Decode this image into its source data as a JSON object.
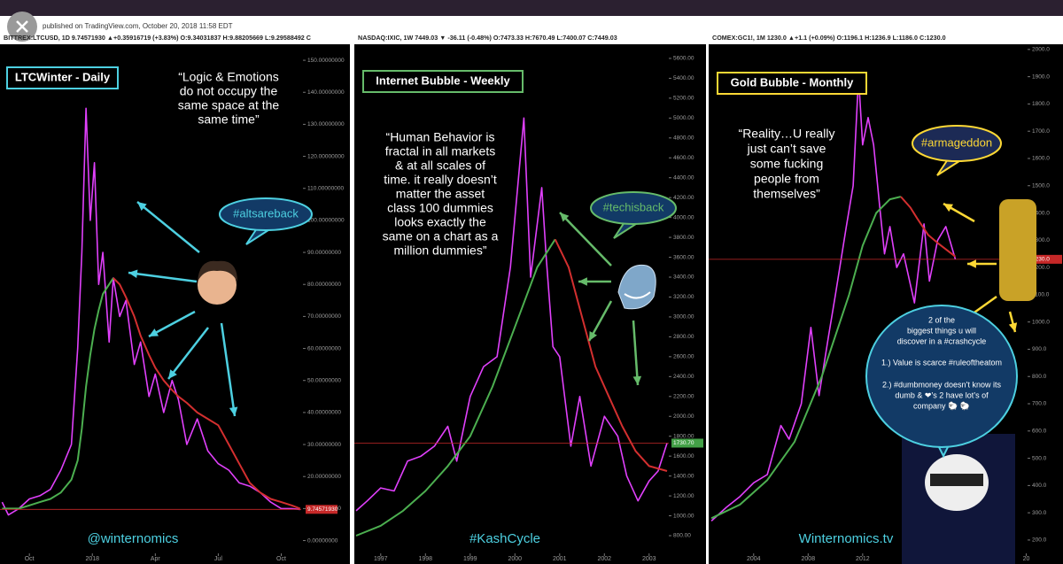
{
  "published": "published on TradingView.com, October 20, 2018 11:58 EDT",
  "chart_data": [
    {
      "type": "line",
      "title": "LTCWinter - Daily",
      "symbol_line": "BITTREX:LTCUSD, 1D 9.74571930 ▲+0.35916719 (+3.83%) O:9.34031837 H:9.88205669 L:9.29588492 C",
      "quote": [
        "“Logic & Emotions",
        "do not occupy the",
        "same space at the",
        "same time”"
      ],
      "hashtag": "#altsareback",
      "watermark": "@winternomics",
      "last_price": {
        "value": 9.7457193,
        "label": "9.74571930"
      },
      "xlim": [
        -0.4,
        13.95
      ],
      "ylim": [
        -4,
        155
      ],
      "xticks": [
        {
          "value": 1,
          "label": "Oct"
        },
        {
          "value": 4,
          "label": "2018"
        },
        {
          "value": 7,
          "label": "Apr"
        },
        {
          "value": 10,
          "label": "Jul"
        },
        {
          "value": 13,
          "label": "Oct"
        }
      ],
      "yticks": [
        {
          "value": 0,
          "label": "0.00000000"
        },
        {
          "value": 10,
          "label": "10.00000000"
        },
        {
          "value": 20,
          "label": "20.00000000"
        },
        {
          "value": 30,
          "label": "30.00000000"
        },
        {
          "value": 40,
          "label": "40.00000000"
        },
        {
          "value": 50,
          "label": "50.00000000"
        },
        {
          "value": 60,
          "label": "60.00000000"
        },
        {
          "value": 70,
          "label": "70.00000000"
        },
        {
          "value": 80,
          "label": "80.00000000"
        },
        {
          "value": 90,
          "label": "90.00000000"
        },
        {
          "value": 100,
          "label": "100.00000000"
        },
        {
          "value": 110,
          "label": "110.00000000"
        },
        {
          "value": 120,
          "label": "120.00000000"
        },
        {
          "value": 130,
          "label": "130.00000000"
        },
        {
          "value": 140,
          "label": "140.00000000"
        },
        {
          "value": 150,
          "label": "150.00000000"
        }
      ],
      "series": [
        {
          "color": "#e040fb",
          "x": [
            -0.3,
            0,
            0.5,
            1,
            1.5,
            2,
            2.5,
            3,
            3.3,
            3.5,
            3.7,
            3.9,
            4.1,
            4.3,
            4.5,
            4.8,
            5.0,
            5.3,
            5.6,
            6.0,
            6.3,
            6.7,
            7.0,
            7.4,
            7.8,
            8.1,
            8.5,
            9.0,
            9.5,
            10.0,
            10.5,
            11.0,
            11.5,
            12.0,
            12.5,
            13.0,
            13.5,
            13.9
          ],
          "values": [
            12,
            8,
            10,
            13,
            14,
            16,
            22,
            30,
            60,
            90,
            135,
            100,
            118,
            80,
            90,
            62,
            82,
            70,
            75,
            55,
            62,
            45,
            52,
            40,
            50,
            44,
            30,
            38,
            28,
            24,
            22,
            18,
            17,
            15,
            12,
            10,
            10,
            9.7
          ]
        },
        {
          "color": "#4caf50",
          "x": [
            -0.3,
            0,
            0.5,
            1,
            1.5,
            2,
            2.5,
            3,
            3.3,
            3.5,
            3.7,
            3.9,
            4.1,
            4.3,
            4.5,
            4.8,
            5.0
          ],
          "values": [
            10,
            10,
            10,
            11,
            12,
            13,
            15,
            19,
            25,
            35,
            48,
            58,
            66,
            72,
            77,
            80,
            82
          ]
        },
        {
          "color": "#d32f2f",
          "x": [
            5.0,
            5.3,
            5.6,
            6.0,
            6.3,
            6.7,
            7.0,
            7.4,
            7.8,
            8.1,
            8.5,
            9.0,
            9.5,
            10.0,
            10.5,
            11.0,
            11.5,
            12.0,
            12.5,
            13.0,
            13.5,
            13.9
          ],
          "values": [
            82,
            80,
            76,
            70,
            64,
            58,
            54,
            50,
            47,
            45,
            43,
            40,
            38,
            36,
            30,
            24,
            18,
            15,
            13,
            12,
            11,
            10
          ]
        }
      ]
    },
    {
      "type": "line",
      "title": "Internet Bubble - Weekly",
      "symbol_line": "NASDAQ:IXIC, 1W 7449.03 ▼ -36.11 (-0.48%) O:7473.33 H:7670.49 L:7400.07 C:7449.03",
      "quote": [
        "“Human Behavior is",
        "fractal in all markets",
        "& at all scales of",
        "time. it really doesn’t",
        "matter the asset",
        "class 100 dummies",
        "looks exactly the",
        "same on a chart as a",
        "million dummies”"
      ],
      "hashtag": "#techisback",
      "watermark": "#KashCycle",
      "last_price": {
        "value": 1730.7,
        "label": "1730.70"
      },
      "xlim": [
        1996.41,
        2003.44
      ],
      "ylim": [
        622,
        5742
      ],
      "xticks": [
        1997,
        1998,
        1999,
        2000,
        2001,
        2002,
        2003
      ],
      "yticks": [
        {
          "value": 800,
          "label": "800.00"
        },
        {
          "value": 1000,
          "label": "1000.00"
        },
        {
          "value": 1200,
          "label": "1200.00"
        },
        {
          "value": 1400,
          "label": "1400.00"
        },
        {
          "value": 1600,
          "label": "1600.00"
        },
        {
          "value": 1800,
          "label": "1800.00"
        },
        {
          "value": 2000,
          "label": "2000.00"
        },
        {
          "value": 2200,
          "label": "2200.00"
        },
        {
          "value": 2400,
          "label": "2400.00"
        },
        {
          "value": 2600,
          "label": "2600.00"
        },
        {
          "value": 2800,
          "label": "2800.00"
        },
        {
          "value": 3000,
          "label": "3000.00"
        },
        {
          "value": 3200,
          "label": "3200.00"
        },
        {
          "value": 3400,
          "label": "3400.00"
        },
        {
          "value": 3600,
          "label": "3600.00"
        },
        {
          "value": 3800,
          "label": "3800.00"
        },
        {
          "value": 4000,
          "label": "4000.00"
        },
        {
          "value": 4200,
          "label": "4200.00"
        },
        {
          "value": 4400,
          "label": "4400.00"
        },
        {
          "value": 4600,
          "label": "4600.00"
        },
        {
          "value": 4800,
          "label": "4800.00"
        },
        {
          "value": 5000,
          "label": "5000.00"
        },
        {
          "value": 5200,
          "label": "5200.00"
        },
        {
          "value": 5400,
          "label": "5400.00"
        },
        {
          "value": 5600,
          "label": "5600.00"
        }
      ],
      "series": [
        {
          "color": "#e040fb",
          "x": [
            1996.45,
            1996.7,
            1997.0,
            1997.3,
            1997.6,
            1997.9,
            1998.2,
            1998.5,
            1998.7,
            1999.0,
            1999.3,
            1999.6,
            1999.9,
            2000.0,
            2000.2,
            2000.35,
            2000.6,
            2000.7,
            2000.85,
            2001.0,
            2001.25,
            2001.45,
            2001.7,
            2002.0,
            2002.3,
            2002.5,
            2002.75,
            2003.0,
            2003.2,
            2003.4
          ],
          "values": [
            1050,
            1150,
            1280,
            1250,
            1550,
            1600,
            1700,
            1900,
            1550,
            2200,
            2500,
            2600,
            3500,
            4000,
            5000,
            3400,
            4300,
            3600,
            2700,
            2600,
            1700,
            2200,
            1500,
            2000,
            1800,
            1400,
            1150,
            1350,
            1450,
            1730.7
          ]
        },
        {
          "color": "#4caf50",
          "x": [
            1996.45,
            1997,
            1997.5,
            1998,
            1998.5,
            1999,
            1999.5,
            2000,
            2000.5,
            2000.9
          ],
          "values": [
            800,
            900,
            1050,
            1250,
            1500,
            1800,
            2300,
            2900,
            3500,
            3780
          ]
        },
        {
          "color": "#d32f2f",
          "x": [
            2000.9,
            2001.2,
            2001.5,
            2001.8,
            2002.1,
            2002.4,
            2002.7,
            2003.0,
            2003.4
          ],
          "values": [
            3780,
            3500,
            3000,
            2500,
            2200,
            1900,
            1650,
            1500,
            1450
          ]
        }
      ]
    },
    {
      "type": "line",
      "title": "Gold  Bubble - Monthly",
      "symbol_line": "COMEX:GC1!, 1M 1230.0 ▲+1.1 (+0.09%) O:1196.1 H:1236.9 L:1186.0 C:1230.0",
      "quote": [
        "“Reality…U really",
        "just can’t save",
        "some fucking",
        "people from",
        "themselves”"
      ],
      "hashtag": "#armageddon",
      "watermark": "Winternomics.tv",
      "note": [
        "2 of the",
        "biggest things u will",
        "discover in a #crashcycle",
        "1.) Value is scarce #ruleoftheatom",
        "2.) #dumbmoney doesn’t know its",
        "dumb & ❤’s 2 have lot’s of",
        "company 🐑 🐑"
      ],
      "last_price": {
        "value": 1230,
        "label": "1230.0"
      },
      "xlim": [
        2000.7,
        2024.1
      ],
      "ylim": [
        151,
        2019
      ],
      "xticks": [
        2004,
        2008,
        2012,
        2016,
        2020,
        {
          "value": 2024,
          "label": "20"
        }
      ],
      "yticks": [
        {
          "value": 200,
          "label": "200.0"
        },
        {
          "value": 300,
          "label": "300.0"
        },
        {
          "value": 400,
          "label": "400.0"
        },
        {
          "value": 500,
          "label": "500.0"
        },
        {
          "value": 600,
          "label": "600.0"
        },
        {
          "value": 700,
          "label": "700.0"
        },
        {
          "value": 800,
          "label": "800.0"
        },
        {
          "value": 900,
          "label": "900.0"
        },
        {
          "value": 1000,
          "label": "1000.0"
        },
        {
          "value": 1100,
          "label": "1100.0"
        },
        {
          "value": 1200,
          "label": "1200.0"
        },
        {
          "value": 1300,
          "label": "1300.0"
        },
        {
          "value": 1400,
          "label": "1400.0"
        },
        {
          "value": 1500,
          "label": "1500.0"
        },
        {
          "value": 1600,
          "label": "1600.0"
        },
        {
          "value": 1700,
          "label": "1700.0"
        },
        {
          "value": 1800,
          "label": "1800.0"
        },
        {
          "value": 1900,
          "label": "1900.0"
        },
        {
          "value": 2000,
          "label": "2000.0"
        }
      ],
      "series": [
        {
          "color": "#e040fb",
          "x": [
            2000.9,
            2002,
            2003,
            2004,
            2005,
            2006,
            2006.6,
            2007.5,
            2008.2,
            2008.8,
            2009.5,
            2010,
            2010.8,
            2011.3,
            2011.7,
            2012,
            2012.4,
            2012.8,
            2013.3,
            2013.6,
            2014,
            2014.5,
            2015,
            2015.8,
            2016.5,
            2016.9,
            2017.5,
            2018.1,
            2018.8
          ],
          "values": [
            270,
            320,
            360,
            410,
            440,
            620,
            570,
            700,
            980,
            730,
            950,
            1100,
            1350,
            1500,
            1900,
            1650,
            1750,
            1650,
            1400,
            1250,
            1350,
            1200,
            1250,
            1070,
            1360,
            1150,
            1300,
            1350,
            1230
          ]
        },
        {
          "color": "#4caf50",
          "x": [
            2000.9,
            2003,
            2005,
            2007,
            2008,
            2009,
            2010,
            2011,
            2012,
            2013,
            2014,
            2014.8
          ],
          "values": [
            280,
            330,
            420,
            560,
            680,
            800,
            950,
            1100,
            1280,
            1400,
            1450,
            1460
          ]
        },
        {
          "color": "#d32f2f",
          "x": [
            2014.8,
            2015.5,
            2016,
            2016.8,
            2017.5,
            2018.8
          ],
          "values": [
            1460,
            1420,
            1380,
            1320,
            1290,
            1240
          ]
        }
      ]
    }
  ]
}
